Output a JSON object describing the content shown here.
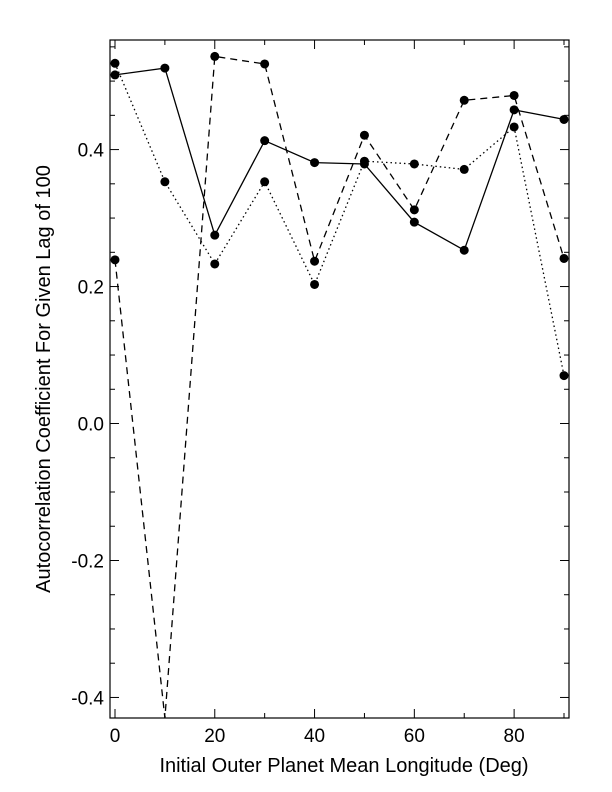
{
  "chart_data": {
    "type": "line",
    "title": "",
    "xlabel": "Initial Outer Planet Mean Longitude (Deg)",
    "ylabel": "Autocorrelation Coefficient For Given Lag of 100",
    "xlim": [
      -1,
      91
    ],
    "ylim": [
      -0.43,
      0.56
    ],
    "x_ticks": [
      0,
      20,
      40,
      60,
      80
    ],
    "x_tick_labels": [
      "0",
      "20",
      "40",
      "60",
      "80"
    ],
    "y_ticks": [
      -0.4,
      -0.2,
      0.0,
      0.2,
      0.4
    ],
    "y_tick_labels": [
      "-0.4",
      "-0.2",
      "0.0",
      "0.2",
      "0.4"
    ],
    "grid": false,
    "legend": "none",
    "x": [
      0,
      10,
      20,
      30,
      40,
      50,
      60,
      70,
      80,
      90
    ],
    "series": [
      {
        "style": "solid",
        "color": "#000000",
        "values": [
          0.509,
          0.519,
          0.275,
          0.413,
          0.381,
          0.379,
          0.294,
          0.253,
          0.458,
          0.444
        ]
      },
      {
        "style": "dashed",
        "color": "#000000",
        "values": [
          0.239,
          -0.43,
          0.536,
          0.525,
          0.237,
          0.421,
          0.312,
          0.472,
          0.479,
          0.241
        ]
      },
      {
        "style": "dotted",
        "color": "#000000",
        "values": [
          0.526,
          0.353,
          0.233,
          0.353,
          0.203,
          0.383,
          0.379,
          0.371,
          0.433,
          0.07
        ]
      }
    ]
  }
}
